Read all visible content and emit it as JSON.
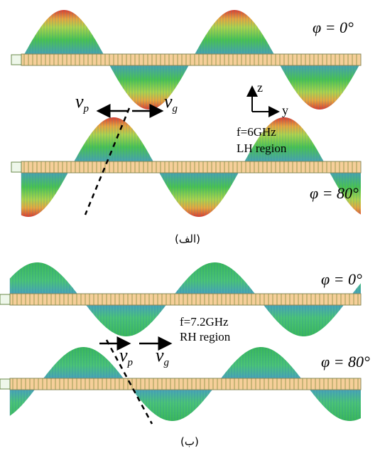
{
  "panel_a": {
    "caption": "(الف)",
    "phi_top": "φ = 0°",
    "phi_bottom": "φ = 80°",
    "vp_label": "ν",
    "vp_sub": "p",
    "vg_label": "ν",
    "vg_sub": "g",
    "freq": "f=6GHz",
    "region": "LH region",
    "axis_z": "z",
    "axis_y": "y"
  },
  "panel_b": {
    "caption": "(ب)",
    "phi_top": "φ = 0°",
    "phi_bottom": "φ = 80°",
    "vp_label": "ν",
    "vp_sub": "p",
    "vg_label": "ν",
    "vg_sub": "g",
    "freq": "f=7.2GHz",
    "region": "RH region"
  },
  "colors": {
    "strip": "#f6cf9a",
    "strip_border": "#8a8a5a",
    "peak": "#d92b1a",
    "mid": "#3bbf3e",
    "low": "#3a8fd0",
    "arrow": "#000000"
  }
}
